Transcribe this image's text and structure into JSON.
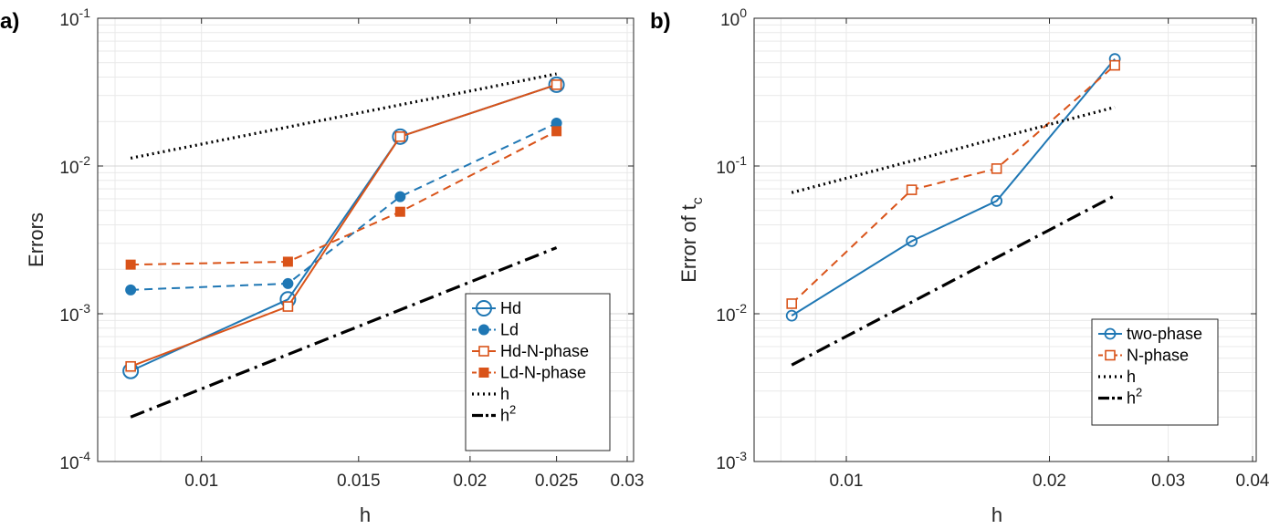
{
  "colors": {
    "blue": "#1f77b4",
    "orange": "#d95319",
    "black": "#000000"
  },
  "chart_data": [
    {
      "type": "line",
      "panel_label": "a)",
      "xscale": "log",
      "yscale": "log",
      "xlabel": "h",
      "ylabel": "Errors",
      "xlim": [
        0.00765,
        0.0305
      ],
      "ylim": [
        0.0001,
        0.1
      ],
      "xticks": [
        0.01,
        0.015,
        0.02,
        0.025,
        0.03
      ],
      "xtick_labels": [
        "0.01",
        "0.015",
        "0.02",
        "0.025",
        "0.03"
      ],
      "yticks": [
        0.0001,
        0.001,
        0.01,
        0.1
      ],
      "ytick_bases": [
        "10",
        "10",
        "10",
        "10"
      ],
      "ytick_exps": [
        "-4",
        "-3",
        "-2",
        "-1"
      ],
      "grid": true,
      "legend_position": "bottom-right",
      "series": [
        {
          "name": "Hd",
          "x": [
            0.00833,
            0.0125,
            0.0167,
            0.025
          ],
          "y": [
            0.00041,
            0.00125,
            0.0158,
            0.0355
          ],
          "color": "#1f77b4",
          "dash": "solid",
          "marker": "circle-open-large"
        },
        {
          "name": "Ld",
          "x": [
            0.00833,
            0.0125,
            0.0167,
            0.025
          ],
          "y": [
            0.00145,
            0.0016,
            0.0062,
            0.0195
          ],
          "color": "#1f77b4",
          "dash": "dashed",
          "marker": "circle-filled"
        },
        {
          "name": "Hd-N-phase",
          "x": [
            0.00833,
            0.0125,
            0.0167,
            0.025
          ],
          "y": [
            0.00044,
            0.00112,
            0.0158,
            0.0355
          ],
          "color": "#d95319",
          "dash": "solid",
          "marker": "square-open"
        },
        {
          "name": "Ld-N-phase",
          "x": [
            0.00833,
            0.0125,
            0.0167,
            0.025
          ],
          "y": [
            0.00215,
            0.00225,
            0.0049,
            0.0172
          ],
          "color": "#d95319",
          "dash": "dashed",
          "marker": "square-filled"
        },
        {
          "name": "h",
          "x": [
            0.00833,
            0.025
          ],
          "y": [
            0.0113,
            0.042
          ],
          "color": "#000000",
          "dash": "dotted",
          "marker": "none"
        },
        {
          "name": "h",
          "legend_sup": "2",
          "x": [
            0.00833,
            0.025
          ],
          "y": [
            0.0002,
            0.0028
          ],
          "color": "#000000",
          "dash": "dashdot",
          "marker": "none"
        }
      ]
    },
    {
      "type": "line",
      "panel_label": "b)",
      "xscale": "log",
      "yscale": "log",
      "xlabel": "h",
      "ylabel": "Error of t",
      "ylabel_sub": "c",
      "xlim": [
        0.0073,
        0.0405
      ],
      "ylim": [
        0.001,
        1
      ],
      "xticks": [
        0.01,
        0.02,
        0.03,
        0.04
      ],
      "xtick_labels": [
        "0.01",
        "0.02",
        "0.03",
        "0.04"
      ],
      "yticks": [
        0.001,
        0.01,
        0.1,
        1
      ],
      "ytick_bases": [
        "10",
        "10",
        "10",
        "10"
      ],
      "ytick_exps": [
        "-3",
        "-2",
        "-1",
        "0"
      ],
      "grid": true,
      "legend_position": "bottom-right",
      "series": [
        {
          "name": "two-phase",
          "x": [
            0.0083,
            0.0125,
            0.0167,
            0.025
          ],
          "y": [
            0.0097,
            0.031,
            0.058,
            0.53
          ],
          "color": "#1f77b4",
          "dash": "solid",
          "marker": "circle-open"
        },
        {
          "name": "N-phase",
          "x": [
            0.0083,
            0.0125,
            0.0167,
            0.025
          ],
          "y": [
            0.0117,
            0.069,
            0.096,
            0.48
          ],
          "color": "#d95319",
          "dash": "dashed",
          "marker": "square-open"
        },
        {
          "name": "h",
          "x": [
            0.0083,
            0.025
          ],
          "y": [
            0.066,
            0.25
          ],
          "color": "#000000",
          "dash": "dotted",
          "marker": "none"
        },
        {
          "name": "h",
          "legend_sup": "2",
          "x": [
            0.0083,
            0.025
          ],
          "y": [
            0.0045,
            0.063
          ],
          "color": "#000000",
          "dash": "dashdot",
          "marker": "none"
        }
      ]
    }
  ]
}
